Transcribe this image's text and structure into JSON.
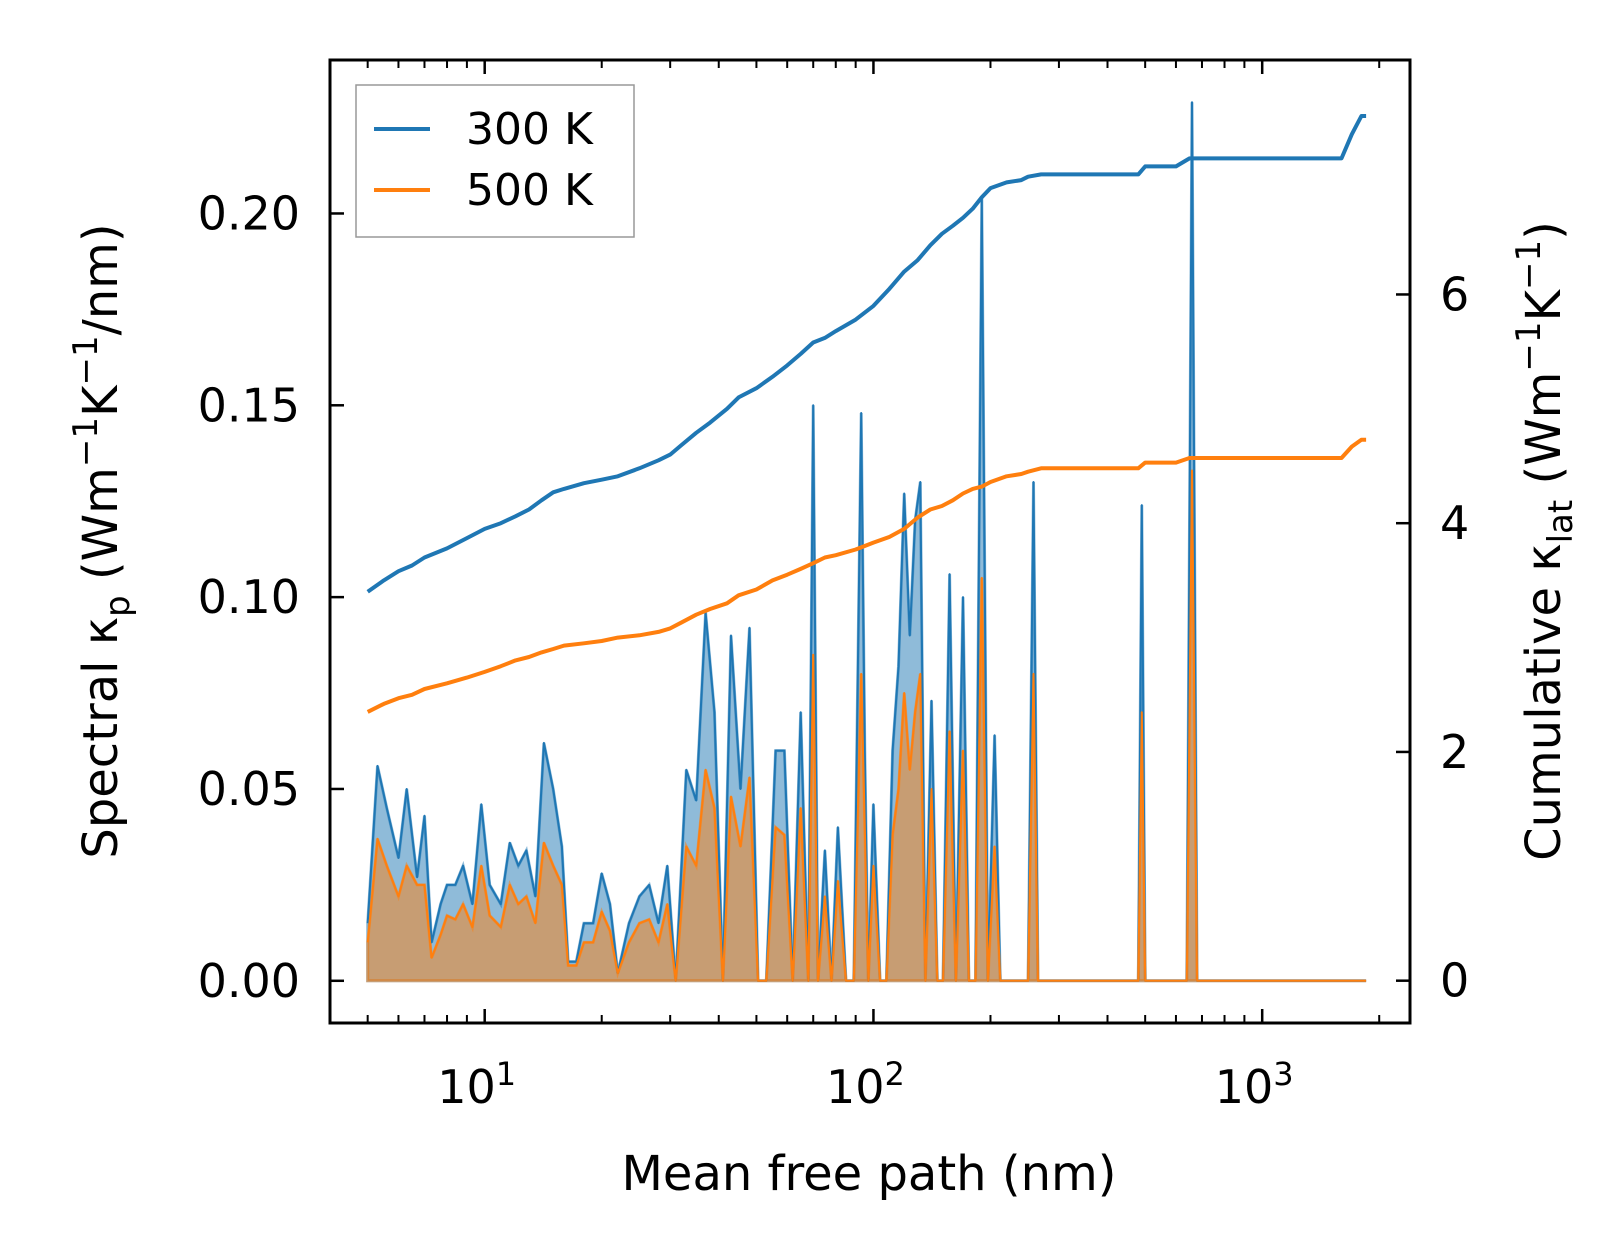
{
  "chart_data": {
    "type": "line",
    "xscale": "log",
    "xlabel": "Mean free path (nm)",
    "xlim": [
      4.0,
      2400
    ],
    "x_ticks": [
      {
        "value": 10,
        "base": "10",
        "exp": "1"
      },
      {
        "value": 100,
        "base": "10",
        "exp": "2"
      },
      {
        "value": 1000,
        "base": "10",
        "exp": "3"
      }
    ],
    "left_axis": {
      "label_parts": [
        "Spectral κ",
        "p",
        " (Wm",
        "−1",
        "K",
        "−1",
        "/nm)"
      ],
      "ylim": [
        -0.011,
        0.24
      ],
      "ticks": [
        0.0,
        0.05,
        0.1,
        0.15,
        0.2
      ],
      "tick_labels": [
        "0.00",
        "0.05",
        "0.10",
        "0.15",
        "0.20"
      ]
    },
    "right_axis": {
      "label_parts": [
        "Cumulative κ",
        "lat",
        " (Wm",
        "−1",
        "K",
        "−1",
        ")"
      ],
      "ylim": [
        -0.37,
        8.05
      ],
      "ticks": [
        0,
        2,
        4,
        6
      ],
      "tick_labels": [
        "0",
        "2",
        "4",
        "6"
      ]
    },
    "legend": {
      "placement": "top-left",
      "entries": [
        {
          "label": "300 K",
          "color": "#1f77b4"
        },
        {
          "label": "500 K",
          "color": "#ff7f0e"
        }
      ]
    },
    "spectral_series": [
      {
        "name": "300 K",
        "color": "#1f77b4",
        "fill_opacity": 0.5,
        "x": [
          5.0,
          5.3,
          5.6,
          6.0,
          6.3,
          6.7,
          7.0,
          7.3,
          7.7,
          8.0,
          8.4,
          8.8,
          9.3,
          9.8,
          10.3,
          11.0,
          11.6,
          12.2,
          12.8,
          13.5,
          14.2,
          15.0,
          15.8,
          16.4,
          17.2,
          18.0,
          19.0,
          20.0,
          21.0,
          22.0,
          23.5,
          25.0,
          26.5,
          28.0,
          29.5,
          31.0,
          33.0,
          35.0,
          37.0,
          39.0,
          41.0,
          43.0,
          45.5,
          48.0,
          50.5,
          53.0,
          56.0,
          59.0,
          62.0,
          65.0,
          68.0,
          70.0,
          72.0,
          75.0,
          78.0,
          81.0,
          85.0,
          89.0,
          93.0,
          95.0,
          97.0,
          100,
          104,
          108,
          112,
          116,
          120,
          124,
          128,
          132,
          136,
          141,
          146,
          151,
          157,
          163,
          170,
          176,
          183,
          190,
          197,
          205,
          212,
          220,
          228,
          236,
          243,
          250,
          258,
          265,
          275,
          285,
          480,
          490,
          500,
          510,
          520,
          610,
          640,
          660,
          680,
          700,
          1600,
          1680,
          1750,
          1800,
          1850
        ],
        "y": [
          0.015,
          0.056,
          0.045,
          0.032,
          0.05,
          0.027,
          0.043,
          0.01,
          0.02,
          0.025,
          0.025,
          0.03,
          0.02,
          0.046,
          0.025,
          0.02,
          0.036,
          0.03,
          0.034,
          0.022,
          0.062,
          0.05,
          0.035,
          0.005,
          0.005,
          0.015,
          0.015,
          0.028,
          0.02,
          0.002,
          0.015,
          0.022,
          0.025,
          0.015,
          0.03,
          0.0,
          0.055,
          0.047,
          0.096,
          0.07,
          0.0,
          0.09,
          0.05,
          0.092,
          0.0,
          0.0,
          0.06,
          0.06,
          0.0,
          0.07,
          0.0,
          0.15,
          0.0,
          0.034,
          0.0,
          0.04,
          0.0,
          0.0,
          0.148,
          0.06,
          0.0,
          0.046,
          0.0,
          0.0,
          0.06,
          0.082,
          0.127,
          0.09,
          0.12,
          0.13,
          0.0,
          0.073,
          0.0,
          0.0,
          0.106,
          0.0,
          0.1,
          0.0,
          0.0,
          0.204,
          0.0,
          0.064,
          0.0,
          0.0,
          0.0,
          0.0,
          0.0,
          0.0,
          0.13,
          0.0,
          0.0,
          0.0,
          0.0,
          0.124,
          0.0,
          0.0,
          0.0,
          0.0,
          0.0,
          0.229,
          0.0,
          0.0,
          0.0,
          0.0,
          0.0,
          0.0,
          0.0
        ]
      },
      {
        "name": "500 K",
        "color": "#ff7f0e",
        "fill_opacity": 0.5,
        "x": [
          5.0,
          5.3,
          5.6,
          6.0,
          6.3,
          6.7,
          7.0,
          7.3,
          7.7,
          8.0,
          8.4,
          8.8,
          9.3,
          9.8,
          10.3,
          11.0,
          11.6,
          12.2,
          12.8,
          13.5,
          14.2,
          15.0,
          15.8,
          16.4,
          17.2,
          18.0,
          19.0,
          20.0,
          21.0,
          22.0,
          23.5,
          25.0,
          26.5,
          28.0,
          29.5,
          31.0,
          33.0,
          35.0,
          37.0,
          39.0,
          41.0,
          43.0,
          45.5,
          48.0,
          50.5,
          53.0,
          56.0,
          59.0,
          62.0,
          65.0,
          68.0,
          70.0,
          72.0,
          75.0,
          78.0,
          81.0,
          85.0,
          89.0,
          93.0,
          95.0,
          97.0,
          100,
          104,
          108,
          112,
          116,
          120,
          124,
          128,
          132,
          136,
          141,
          146,
          151,
          157,
          163,
          170,
          176,
          183,
          190,
          197,
          205,
          212,
          220,
          228,
          236,
          243,
          250,
          258,
          265,
          275,
          285,
          480,
          490,
          500,
          510,
          520,
          610,
          640,
          660,
          680,
          700,
          1600,
          1680,
          1750,
          1800,
          1850
        ],
        "y": [
          0.01,
          0.037,
          0.03,
          0.022,
          0.03,
          0.025,
          0.025,
          0.006,
          0.012,
          0.017,
          0.016,
          0.02,
          0.014,
          0.03,
          0.017,
          0.014,
          0.025,
          0.02,
          0.022,
          0.015,
          0.036,
          0.03,
          0.025,
          0.004,
          0.004,
          0.01,
          0.01,
          0.018,
          0.013,
          0.002,
          0.01,
          0.015,
          0.016,
          0.01,
          0.02,
          0.0,
          0.035,
          0.03,
          0.055,
          0.045,
          0.0,
          0.048,
          0.035,
          0.053,
          0.0,
          0.0,
          0.04,
          0.038,
          0.0,
          0.045,
          0.0,
          0.085,
          0.0,
          0.022,
          0.0,
          0.026,
          0.0,
          0.0,
          0.08,
          0.04,
          0.0,
          0.03,
          0.0,
          0.0,
          0.038,
          0.05,
          0.075,
          0.055,
          0.07,
          0.08,
          0.0,
          0.05,
          0.0,
          0.0,
          0.065,
          0.0,
          0.06,
          0.0,
          0.0,
          0.105,
          0.0,
          0.035,
          0.0,
          0.0,
          0.0,
          0.0,
          0.0,
          0.0,
          0.08,
          0.0,
          0.0,
          0.0,
          0.0,
          0.07,
          0.0,
          0.0,
          0.0,
          0.0,
          0.0,
          0.133,
          0.0,
          0.0,
          0.0,
          0.0,
          0.0,
          0.0,
          0.0
        ]
      }
    ],
    "cumulative_series": [
      {
        "name": "300 K",
        "color": "#1f77b4",
        "x": [
          5.0,
          5.5,
          6.0,
          6.5,
          7.0,
          8.0,
          9.0,
          10.0,
          11.0,
          12.0,
          13.0,
          14.0,
          15.0,
          16.0,
          18.0,
          20.0,
          22.0,
          25.0,
          28.0,
          30.0,
          32.0,
          35.0,
          38.0,
          42.0,
          45.0,
          50.0,
          55.0,
          60.0,
          65.0,
          70.0,
          75.0,
          80.0,
          90.0,
          100,
          110,
          120,
          130,
          140,
          150,
          160,
          170,
          180,
          190,
          200,
          220,
          240,
          250,
          270,
          300,
          400,
          480,
          500,
          600,
          650,
          700,
          1000,
          1600,
          1700,
          1800,
          1850
        ],
        "y": [
          3.4,
          3.5,
          3.58,
          3.63,
          3.7,
          3.78,
          3.87,
          3.95,
          4.0,
          4.06,
          4.12,
          4.2,
          4.27,
          4.3,
          4.35,
          4.38,
          4.41,
          4.48,
          4.55,
          4.6,
          4.68,
          4.79,
          4.88,
          5.0,
          5.1,
          5.18,
          5.28,
          5.38,
          5.48,
          5.58,
          5.62,
          5.68,
          5.78,
          5.9,
          6.05,
          6.2,
          6.3,
          6.43,
          6.53,
          6.6,
          6.67,
          6.75,
          6.85,
          6.93,
          6.98,
          7.0,
          7.03,
          7.05,
          7.05,
          7.05,
          7.05,
          7.12,
          7.12,
          7.19,
          7.19,
          7.19,
          7.19,
          7.4,
          7.56,
          7.56
        ]
      },
      {
        "name": "500 K",
        "color": "#ff7f0e",
        "x": [
          5.0,
          5.5,
          6.0,
          6.5,
          7.0,
          8.0,
          9.0,
          10.0,
          11.0,
          12.0,
          13.0,
          14.0,
          15.0,
          16.0,
          18.0,
          20.0,
          22.0,
          25.0,
          28.0,
          30.0,
          32.0,
          35.0,
          38.0,
          42.0,
          45.0,
          50.0,
          55.0,
          60.0,
          65.0,
          70.0,
          75.0,
          80.0,
          90.0,
          100,
          110,
          120,
          130,
          140,
          150,
          160,
          170,
          180,
          190,
          200,
          220,
          240,
          250,
          270,
          300,
          400,
          480,
          500,
          600,
          650,
          700,
          1000,
          1600,
          1700,
          1800,
          1850
        ],
        "y": [
          2.35,
          2.42,
          2.47,
          2.5,
          2.55,
          2.6,
          2.65,
          2.7,
          2.75,
          2.8,
          2.83,
          2.87,
          2.9,
          2.93,
          2.95,
          2.97,
          3.0,
          3.02,
          3.05,
          3.08,
          3.13,
          3.2,
          3.25,
          3.3,
          3.37,
          3.42,
          3.5,
          3.55,
          3.6,
          3.65,
          3.7,
          3.72,
          3.77,
          3.83,
          3.88,
          3.95,
          4.05,
          4.12,
          4.15,
          4.2,
          4.26,
          4.3,
          4.32,
          4.36,
          4.41,
          4.43,
          4.45,
          4.48,
          4.48,
          4.48,
          4.48,
          4.53,
          4.53,
          4.57,
          4.57,
          4.57,
          4.57,
          4.67,
          4.73,
          4.73
        ]
      }
    ]
  }
}
